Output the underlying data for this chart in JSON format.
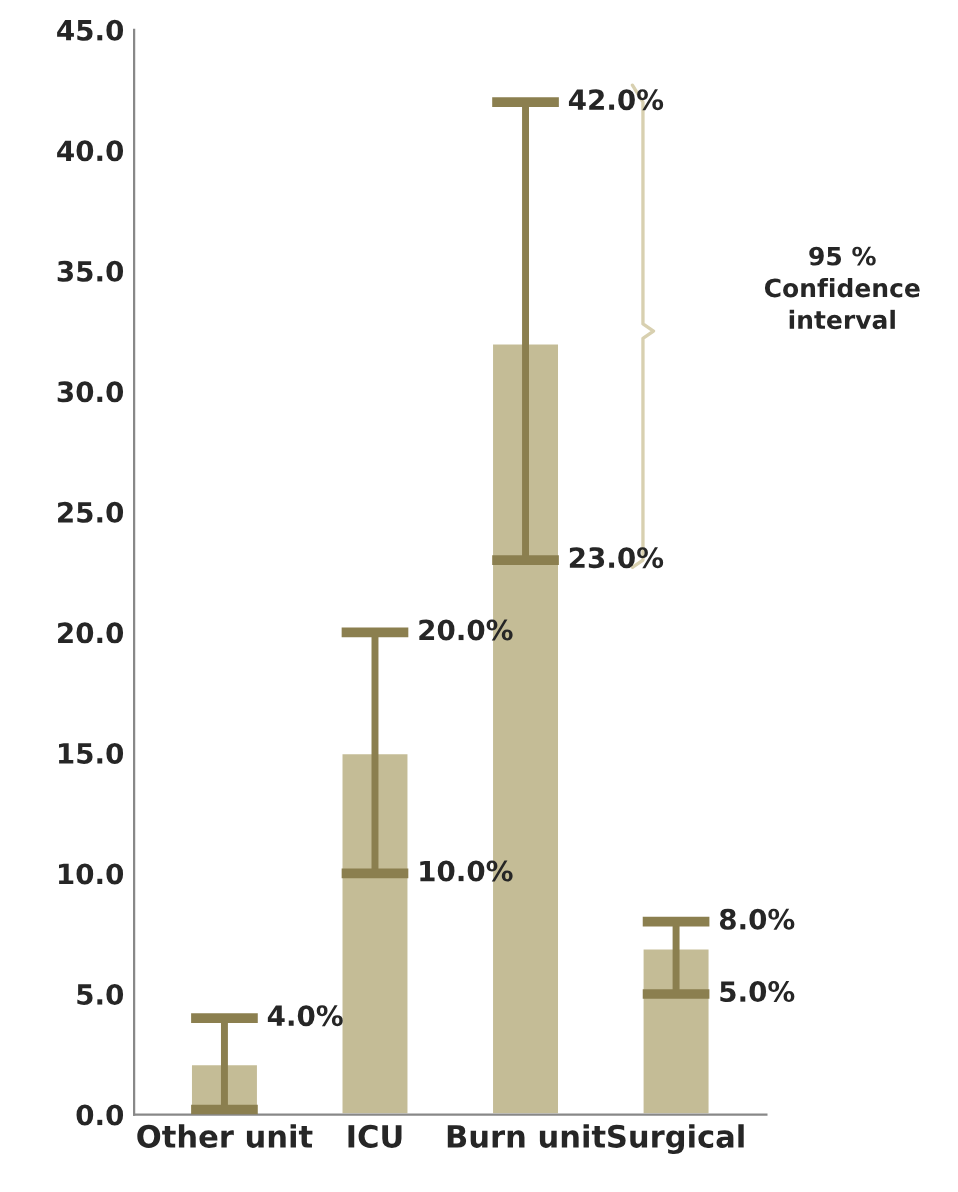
{
  "chart_data": {
    "type": "bar",
    "categories": [
      "Other unit",
      "ICU",
      "Burn unit",
      "Surgical"
    ],
    "values": [
      2.1,
      15.0,
      32.0,
      6.9
    ],
    "color": "#c4bc96",
    "errors": [
      [
        0.2,
        4.0
      ],
      [
        10.0,
        20.0
      ],
      [
        23.0,
        42.0
      ],
      [
        5.0,
        8.0
      ]
    ],
    "ylim": [
      0,
      45
    ],
    "yticks": [
      {
        "value": 0,
        "label": "0.0"
      },
      {
        "value": 5,
        "label": "5.0"
      },
      {
        "value": 10,
        "label": "10.0"
      },
      {
        "value": 15,
        "label": "15.0"
      },
      {
        "value": 20,
        "label": "20.0"
      },
      {
        "value": 25,
        "label": "25.0"
      },
      {
        "value": 30,
        "label": "30.0"
      },
      {
        "value": 35,
        "label": "35.0"
      },
      {
        "value": 40,
        "label": "40.0"
      },
      {
        "value": 45,
        "label": "45.0"
      }
    ],
    "grid": false,
    "legend": false,
    "annotations": [
      {
        "text": "4.0%",
        "x": "Other unit",
        "y": 4.0
      },
      {
        "text": "20.0%",
        "x": "ICU",
        "y": 20.0
      },
      {
        "text": "10.0%",
        "x": "ICU",
        "y": 10.0
      },
      {
        "text": "42.0%",
        "x": "Burn unit",
        "y": 42.0
      },
      {
        "text": "23.0%",
        "x": "Burn unit",
        "y": 23.0
      },
      {
        "text": "8.0%",
        "x": "Surgical",
        "y": 8.0
      },
      {
        "text": "5.0%",
        "x": "Surgical",
        "y": 5.0
      },
      "95 %\nConfidence\ninterval"
    ]
  }
}
